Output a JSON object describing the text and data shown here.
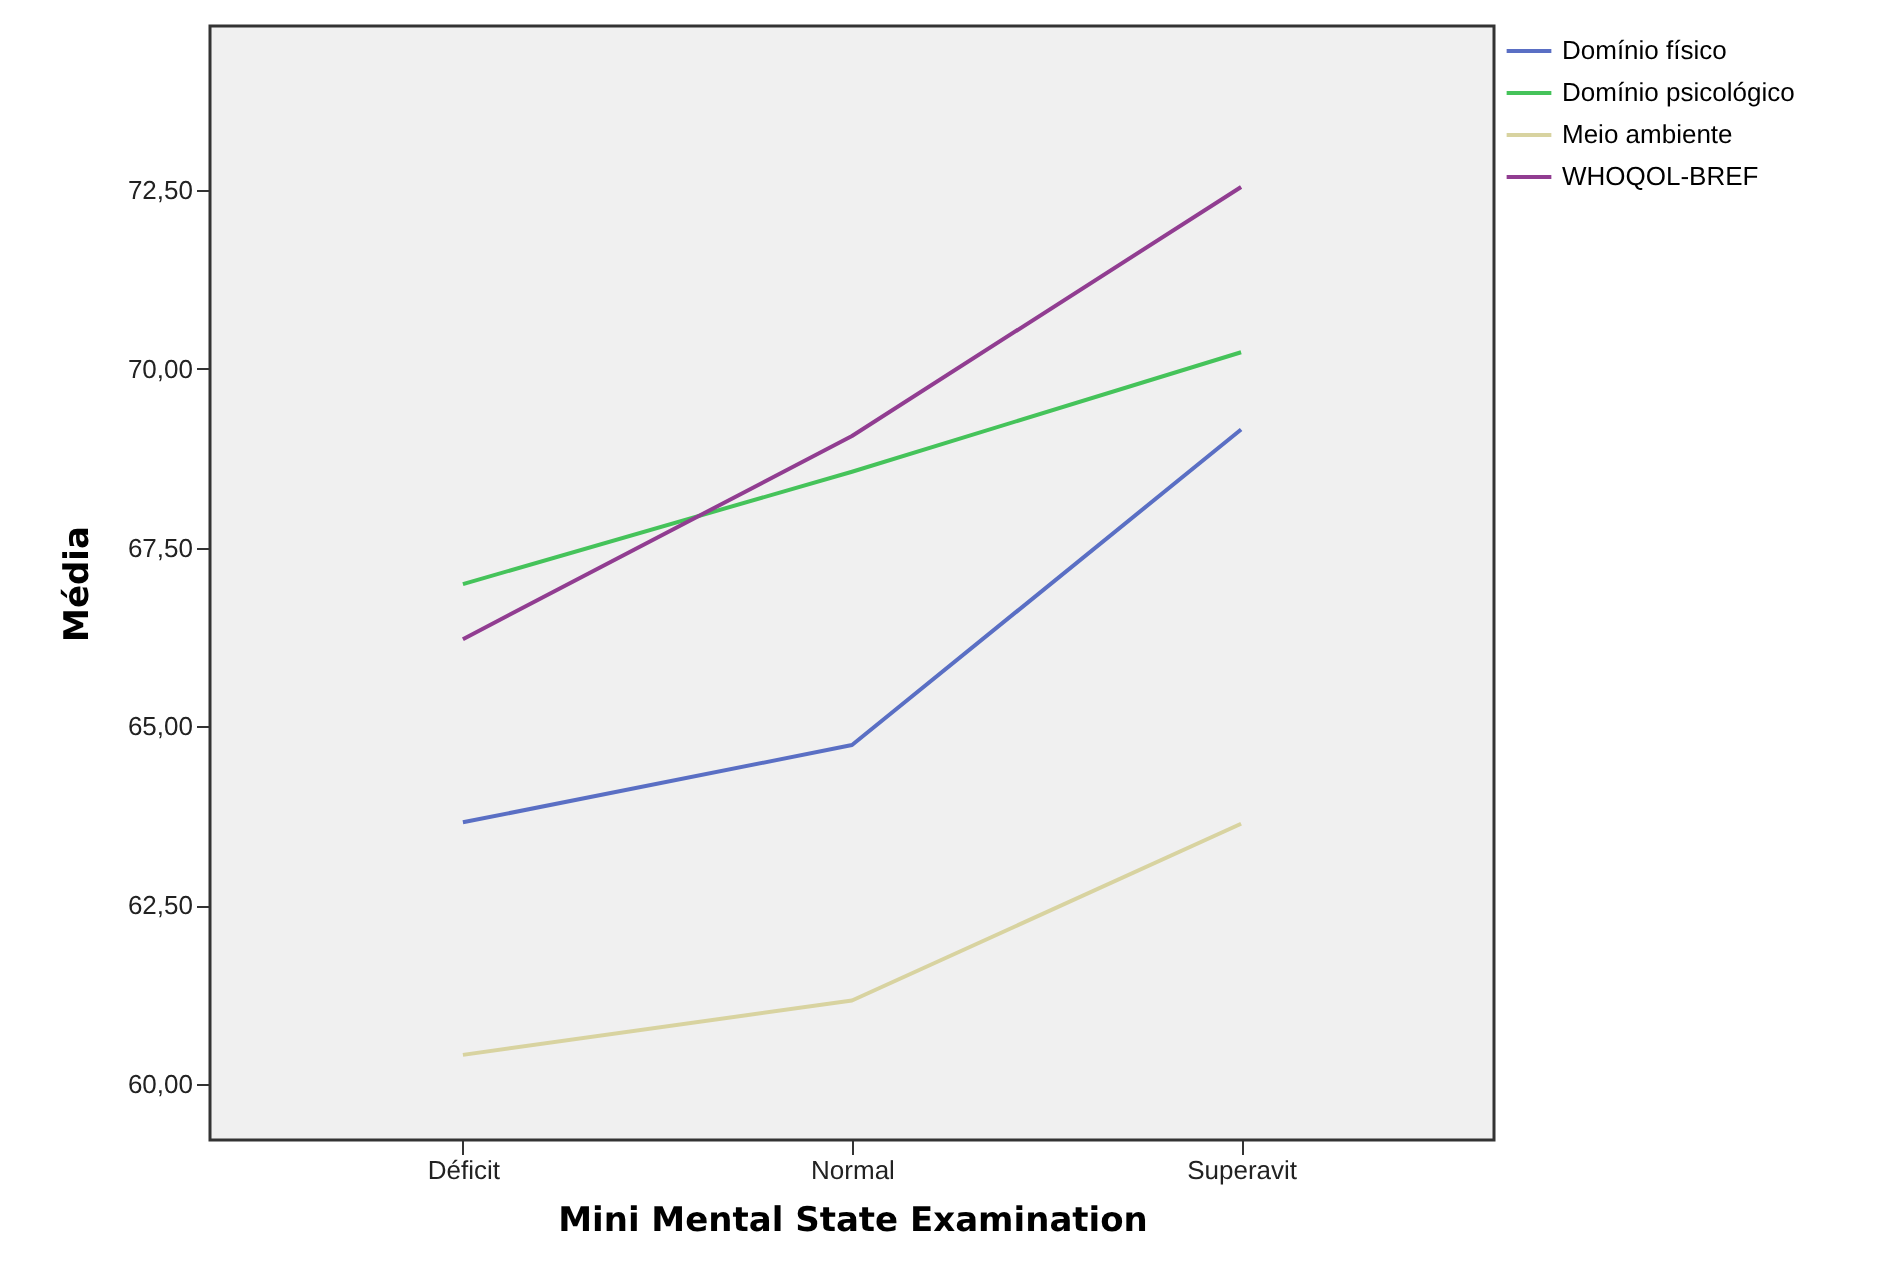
{
  "chart_data": {
    "type": "line",
    "xlabel": "Mini Mental State Examination",
    "ylabel": "Média",
    "categories": [
      "Déficit",
      "Normal",
      "Superavit"
    ],
    "series": [
      {
        "name": "Domínio físico",
        "color": "#5a6fc4",
        "values": [
          63.66,
          64.74,
          69.15
        ]
      },
      {
        "name": "Domínio psicológico",
        "color": "#45c35a",
        "values": [
          66.99,
          68.56,
          70.23
        ]
      },
      {
        "name": "Meio ambiente",
        "color": "#d8d3a0",
        "values": [
          60.41,
          61.17,
          63.64
        ]
      },
      {
        "name": "WHOQOL-BREF",
        "color": "#913d91",
        "values": [
          66.22,
          69.06,
          72.54
        ]
      }
    ],
    "ylim": [
      59.22,
      74.79
    ],
    "yticks": [
      {
        "value": 60,
        "label": "60,00"
      },
      {
        "value": 62.5,
        "label": "62,50"
      },
      {
        "value": 65,
        "label": "65,00"
      },
      {
        "value": 67.5,
        "label": "67,50"
      },
      {
        "value": 70,
        "label": "70,00"
      },
      {
        "value": 72.5,
        "label": "72,50"
      }
    ],
    "grid": false,
    "legend": "top right",
    "marker": "none",
    "line_style": "solid"
  }
}
